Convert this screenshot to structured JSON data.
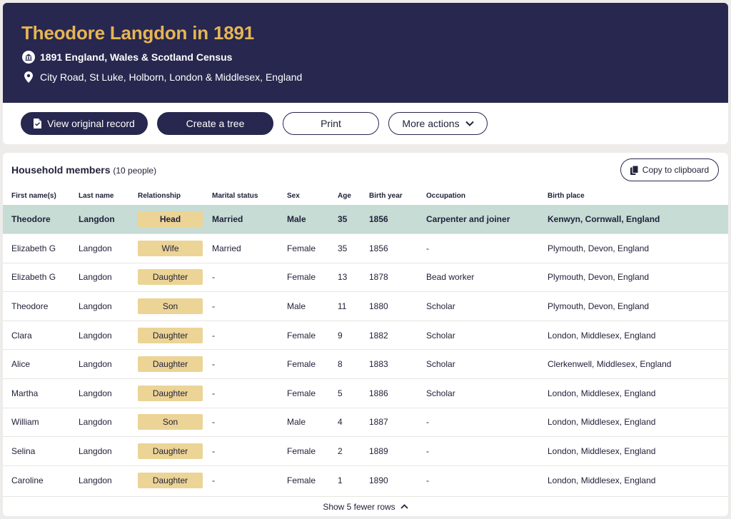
{
  "header": {
    "title": "Theodore Langdon in 1891",
    "collection": "1891 England, Wales & Scotland Census",
    "location": "City Road, St Luke, Holborn, London & Middlesex, England",
    "collection_icon": "building-icon",
    "location_icon": "map-pin-icon"
  },
  "actions": {
    "view_original": "View original record",
    "create_tree": "Create a tree",
    "print": "Print",
    "more_actions": "More actions"
  },
  "household": {
    "title": "Household members",
    "count": "(10 people)",
    "copy_label": "Copy to clipboard",
    "columns": [
      "First name(s)",
      "Last name",
      "Relationship",
      "Marital status",
      "Sex",
      "Age",
      "Birth year",
      "Occupation",
      "Birth place"
    ],
    "rows": [
      {
        "first": "Theodore",
        "last": "Langdon",
        "relationship": "Head",
        "marital": "Married",
        "sex": "Male",
        "age": "35",
        "birth_year": "1856",
        "occupation": "Carpenter and joiner",
        "birth_place": "Kenwyn, Cornwall, England"
      },
      {
        "first": "Elizabeth G",
        "last": "Langdon",
        "relationship": "Wife",
        "marital": "Married",
        "sex": "Female",
        "age": "35",
        "birth_year": "1856",
        "occupation": "-",
        "birth_place": "Plymouth, Devon, England"
      },
      {
        "first": "Elizabeth G",
        "last": "Langdon",
        "relationship": "Daughter",
        "marital": "-",
        "sex": "Female",
        "age": "13",
        "birth_year": "1878",
        "occupation": "Bead worker",
        "birth_place": "Plymouth, Devon, England"
      },
      {
        "first": "Theodore",
        "last": "Langdon",
        "relationship": "Son",
        "marital": "-",
        "sex": "Male",
        "age": "11",
        "birth_year": "1880",
        "occupation": "Scholar",
        "birth_place": "Plymouth, Devon, England"
      },
      {
        "first": "Clara",
        "last": "Langdon",
        "relationship": "Daughter",
        "marital": "-",
        "sex": "Female",
        "age": "9",
        "birth_year": "1882",
        "occupation": "Scholar",
        "birth_place": "London, Middlesex, England"
      },
      {
        "first": "Alice",
        "last": "Langdon",
        "relationship": "Daughter",
        "marital": "-",
        "sex": "Female",
        "age": "8",
        "birth_year": "1883",
        "occupation": "Scholar",
        "birth_place": "Clerkenwell, Middlesex, England"
      },
      {
        "first": "Martha",
        "last": "Langdon",
        "relationship": "Daughter",
        "marital": "-",
        "sex": "Female",
        "age": "5",
        "birth_year": "1886",
        "occupation": "Scholar",
        "birth_place": "London, Middlesex, England"
      },
      {
        "first": "William",
        "last": "Langdon",
        "relationship": "Son",
        "marital": "-",
        "sex": "Male",
        "age": "4",
        "birth_year": "1887",
        "occupation": "-",
        "birth_place": "London, Middlesex, England"
      },
      {
        "first": "Selina",
        "last": "Langdon",
        "relationship": "Daughter",
        "marital": "-",
        "sex": "Female",
        "age": "2",
        "birth_year": "1889",
        "occupation": "-",
        "birth_place": "London, Middlesex, England"
      },
      {
        "first": "Caroline",
        "last": "Langdon",
        "relationship": "Daughter",
        "marital": "-",
        "sex": "Female",
        "age": "1",
        "birth_year": "1890",
        "occupation": "-",
        "birth_place": "London, Middlesex, England"
      }
    ],
    "toggle_label": "Show 5 fewer rows"
  },
  "colors": {
    "header_bg": "#27274f",
    "title_gold": "#e6b554",
    "highlight_row": "#c6dcd5",
    "relationship_pill": "#ecd496"
  }
}
